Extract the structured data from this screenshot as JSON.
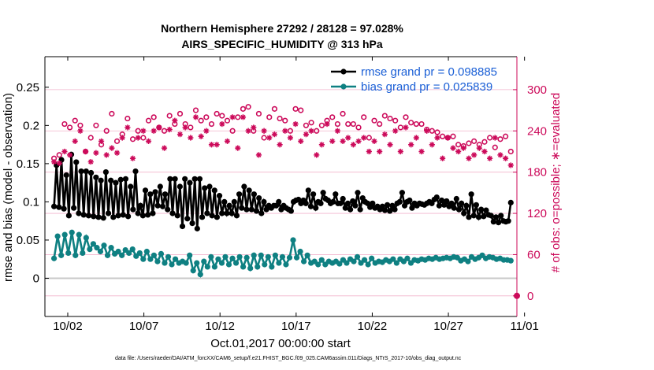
{
  "chart_data": {
    "type": "line",
    "title": "Northern Hemisphere 27292 / 28128 = 97.028%",
    "subtitle": "AIRS_SPECIFIC_HUMIDITY @ 313 hPa",
    "xlabel": "Oct.01,2017 00:00:00 start",
    "ylabel_left": "rmse and bias (model - observation)",
    "ylabel_right": "# of obs: o=possible; ∗=evaluated",
    "footnote": "data file: /Users/raeder/DAI/ATM_forcXX/CAM6_setup/f.e21.FHIST_BGC.f09_025.CAM6assim.011/Diags_NTrS_2017-10/obs_diag_output.nc",
    "xlim": [
      0.5,
      31.5
    ],
    "ylim_left": [
      -0.05,
      0.29
    ],
    "ylim_right": [
      -30,
      348
    ],
    "x_ticks": [
      2,
      7,
      12,
      17,
      22,
      27,
      32
    ],
    "x_tick_labels": [
      "10/02",
      "10/07",
      "10/12",
      "10/17",
      "10/22",
      "10/27",
      "11/01"
    ],
    "y_left_ticks": [
      0,
      0.05,
      0.1,
      0.15,
      0.2,
      0.25
    ],
    "y_left_tick_labels": [
      "0",
      "0.05",
      "0.1",
      "0.15",
      "0.2",
      "0.25"
    ],
    "y_right_ticks": [
      0,
      60,
      120,
      180,
      240,
      300
    ],
    "y_right_tick_labels": [
      "0",
      "60",
      "120",
      "180",
      "240",
      "300"
    ],
    "legend_position": "top-right",
    "series": [
      {
        "name": "rmse grand pr = 0.098885",
        "color": "#000000",
        "axis": "left",
        "marker": "filled-circle",
        "values": [
          0.094,
          0.148,
          0.093,
          0.155,
          0.091,
          0.135,
          0.082,
          0.162,
          0.092,
          0.152,
          0.085,
          0.14,
          0.083,
          0.14,
          0.082,
          0.138,
          0.081,
          0.132,
          0.08,
          0.128,
          0.079,
          0.139,
          0.085,
          0.128,
          0.08,
          0.125,
          0.082,
          0.129,
          0.083,
          0.13,
          0.081,
          0.12,
          0.09,
          0.14,
          0.085,
          0.095,
          0.082,
          0.115,
          0.083,
          0.11,
          0.085,
          0.113,
          0.095,
          0.12,
          0.094,
          0.11,
          0.09,
          0.13,
          0.085,
          0.13,
          0.082,
          0.12,
          0.068,
          0.13,
          0.078,
          0.125,
          0.072,
          0.13,
          0.065,
          0.13,
          0.08,
          0.118,
          0.085,
          0.12,
          0.082,
          0.115,
          0.08,
          0.108,
          0.085,
          0.1,
          0.085,
          0.095,
          0.085,
          0.1,
          0.082,
          0.11,
          0.092,
          0.12,
          0.09,
          0.115,
          0.09,
          0.11,
          0.088,
          0.105,
          0.085,
          0.1,
          0.09,
          0.095,
          0.092,
          0.095,
          0.095,
          0.1,
          0.09,
          0.095,
          0.092,
          0.09,
          0.088,
          0.1,
          0.102,
          0.103,
          0.098,
          0.102,
          0.098,
          0.115,
          0.094,
          0.11,
          0.092,
          0.1,
          0.098,
          0.112,
          0.104,
          0.102,
          0.098,
          0.1,
          0.11,
          0.098,
          0.098,
          0.104,
          0.092,
          0.098,
          0.09,
          0.101,
          0.095,
          0.112,
          0.09,
          0.105,
          0.1,
          0.098,
          0.093,
          0.098,
          0.092,
          0.094,
          0.09,
          0.094,
          0.089,
          0.096,
          0.088,
          0.095,
          0.09,
          0.098,
          0.1,
          0.112,
          0.095,
          0.1,
          0.102,
          0.092,
          0.098,
          0.095,
          0.098,
          0.097,
          0.096,
          0.098,
          0.1,
          0.098,
          0.103,
          0.106,
          0.095,
          0.102,
          0.096,
          0.101,
          0.094,
          0.098,
          0.092,
          0.104,
          0.09,
          0.098,
          0.085,
          0.095,
          0.08,
          0.11,
          0.082,
          0.096,
          0.08,
          0.09,
          0.081,
          0.089,
          0.083,
          0.082,
          0.074,
          0.08,
          0.073,
          0.082,
          0.075,
          0.074,
          0.075,
          0.099
        ]
      },
      {
        "name": "bias grand pr = 0.025839",
        "color": "#0f8082",
        "axis": "left",
        "marker": "filled-circle",
        "values": [
          0.026,
          0.055,
          0.03,
          0.057,
          0.033,
          0.06,
          0.03,
          0.057,
          0.033,
          0.053,
          0.038,
          0.045,
          0.04,
          0.035,
          0.043,
          0.03,
          0.04,
          0.032,
          0.035,
          0.03,
          0.037,
          0.033,
          0.038,
          0.029,
          0.033,
          0.025,
          0.035,
          0.025,
          0.03,
          0.022,
          0.032,
          0.02,
          0.028,
          0.018,
          0.025,
          0.02,
          0.022,
          0.02,
          0.03,
          0.01,
          0.02,
          0.005,
          0.022,
          0.015,
          0.028,
          0.015,
          0.025,
          0.02,
          0.028,
          0.018,
          0.026,
          0.02,
          0.028,
          0.015,
          0.027,
          0.013,
          0.03,
          0.015,
          0.03,
          0.018,
          0.028,
          0.015,
          0.03,
          0.02,
          0.028,
          0.018,
          0.027,
          0.05,
          0.027,
          0.035,
          0.022,
          0.03,
          0.02,
          0.022,
          0.018,
          0.024,
          0.018,
          0.022,
          0.02,
          0.022,
          0.019,
          0.024,
          0.02,
          0.025,
          0.022,
          0.028,
          0.02,
          0.024,
          0.018,
          0.026,
          0.02,
          0.022,
          0.021,
          0.024,
          0.022,
          0.025,
          0.02,
          0.025,
          0.022,
          0.026,
          0.02,
          0.024,
          0.023,
          0.025,
          0.024,
          0.026,
          0.025,
          0.027,
          0.025,
          0.026,
          0.027,
          0.026,
          0.028,
          0.027,
          0.023,
          0.025,
          0.022,
          0.028,
          0.025,
          0.027,
          0.03,
          0.026,
          0.028,
          0.027,
          0.025,
          0.026,
          0.024,
          0.024,
          0.023
        ]
      },
      {
        "name": "possible obs",
        "color": "#cc0a5a",
        "axis": "right",
        "marker": "open-circle",
        "values": [
          200,
          205,
          250,
          245,
          255,
          248,
          210,
          230,
          248,
          220,
          240,
          265,
          225,
          235,
          258,
          228,
          240,
          230,
          255,
          260,
          245,
          240,
          262,
          250,
          265,
          250,
          245,
          270,
          255,
          260,
          250,
          265,
          262,
          255,
          240,
          260,
          272,
          275,
          240,
          265,
          230,
          260,
          272,
          258,
          255,
          240,
          272,
          270,
          248,
          252,
          240,
          248,
          255,
          260,
          250,
          265,
          250,
          250,
          245,
          260,
          230,
          255,
          250,
          262,
          258,
          255,
          245,
          260,
          252,
          250,
          250,
          242,
          240,
          238,
          232,
          230,
          232,
          220,
          218,
          222,
          225,
          220,
          224,
          230,
          216,
          228,
          232,
          210
        ]
      },
      {
        "name": "evaluated obs",
        "color": "#cc0a5a",
        "axis": "right",
        "marker": "asterisk",
        "values": [
          195,
          193,
          210,
          205,
          225,
          240,
          210,
          195,
          208,
          225,
          205,
          215,
          208,
          230,
          245,
          200,
          230,
          240,
          225,
          240,
          245,
          215,
          242,
          255,
          235,
          245,
          230,
          260,
          232,
          240,
          220,
          220,
          250,
          225,
          260,
          215,
          260,
          240,
          245,
          205,
          240,
          230,
          235,
          220,
          240,
          230,
          250,
          225,
          235,
          240,
          205,
          220,
          250,
          225,
          240,
          225,
          230,
          220,
          225,
          230,
          210,
          225,
          210,
          235,
          220,
          240,
          210,
          245,
          220,
          230,
          210,
          240,
          220,
          230,
          200,
          230,
          215,
          210,
          215,
          200,
          205,
          215,
          210,
          200,
          230,
          205,
          200,
          190
        ]
      }
    ]
  }
}
